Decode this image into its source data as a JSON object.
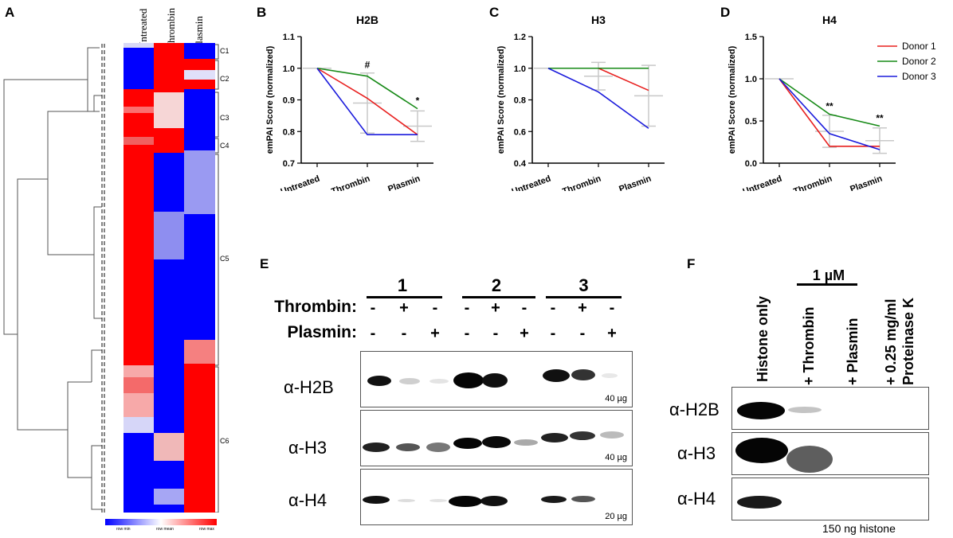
{
  "panel_letters": {
    "a": "A",
    "b": "B",
    "c": "C",
    "d": "D",
    "e": "E",
    "f": "F"
  },
  "heatmap": {
    "columns": [
      "Untreated",
      "Thrombin",
      "Plasmin"
    ],
    "clusters": [
      "C1",
      "C2",
      "C3",
      "C4",
      "C5",
      "C6"
    ],
    "legend": {
      "min": "row min",
      "mean": "row mean",
      "max": "row max"
    },
    "colors": {
      "low": "#0000ff",
      "mid": "#ffffff",
      "high": "#ff0000"
    }
  },
  "chart_data": [
    {
      "type": "line",
      "title": "H2B",
      "ylabel": "emPAI Score (normalized)",
      "xlabel": "",
      "categories": [
        "Untreated",
        "Thrombin",
        "Plasmin"
      ],
      "ylim": [
        0.7,
        1.1
      ],
      "yticks": [
        "0.7",
        "0.8",
        "0.9",
        "1.0",
        "1.1"
      ],
      "series": [
        {
          "name": "Donor 1",
          "color": "#e8201f",
          "values": [
            1.0,
            0.905,
            0.79
          ]
        },
        {
          "name": "Donor 2",
          "color": "#178a17",
          "values": [
            1.0,
            0.975,
            0.872
          ]
        },
        {
          "name": "Donor 3",
          "color": "#1b1bdc",
          "values": [
            1.0,
            0.79,
            0.79
          ]
        }
      ],
      "mean": [
        1.0,
        0.89,
        0.817
      ],
      "error": [
        0.0,
        0.095,
        0.048
      ],
      "annotations": [
        {
          "category": "Thrombin",
          "text": "#"
        },
        {
          "category": "Plasmin",
          "text": "*"
        }
      ]
    },
    {
      "type": "line",
      "title": "H3",
      "ylabel": "emPAI Score (normalized)",
      "xlabel": "",
      "categories": [
        "Untreated",
        "Thrombin",
        "Plasmin"
      ],
      "ylim": [
        0.4,
        1.2
      ],
      "yticks": [
        "0.4",
        "0.6",
        "0.8",
        "1.0",
        "1.2"
      ],
      "series": [
        {
          "name": "Donor 1",
          "color": "#e8201f",
          "values": [
            1.0,
            1.0,
            0.86
          ]
        },
        {
          "name": "Donor 2",
          "color": "#178a17",
          "values": [
            1.0,
            1.0,
            1.0
          ]
        },
        {
          "name": "Donor 3",
          "color": "#1b1bdc",
          "values": [
            1.0,
            0.85,
            0.62
          ]
        }
      ],
      "mean": [
        1.0,
        0.95,
        0.826
      ],
      "error": [
        0.0,
        0.087,
        0.192
      ],
      "annotations": []
    },
    {
      "type": "line",
      "title": "H4",
      "ylabel": "emPAI Score (normalized)",
      "xlabel": "",
      "categories": [
        "Untreated",
        "Thrombin",
        "Plasmin"
      ],
      "ylim": [
        0.0,
        1.5
      ],
      "yticks": [
        "0.0",
        "0.5",
        "1.0",
        "1.5"
      ],
      "series": [
        {
          "name": "Donor 1",
          "color": "#e8201f",
          "values": [
            1.0,
            0.2,
            0.2
          ]
        },
        {
          "name": "Donor 2",
          "color": "#178a17",
          "values": [
            1.0,
            0.58,
            0.44
          ]
        },
        {
          "name": "Donor 3",
          "color": "#1b1bdc",
          "values": [
            1.0,
            0.35,
            0.16
          ]
        }
      ],
      "mean": [
        1.0,
        0.377,
        0.267
      ],
      "error": [
        0.0,
        0.19,
        0.15
      ],
      "annotations": [
        {
          "category": "Thrombin",
          "text": "**"
        },
        {
          "category": "Plasmin",
          "text": "**"
        }
      ],
      "legend": [
        "Donor 1",
        "Donor 2",
        "Donor 3"
      ]
    }
  ],
  "blot_e": {
    "groups": [
      "1",
      "2",
      "3"
    ],
    "rows": [
      {
        "label": "Thrombin:",
        "signs": [
          "-",
          "+",
          "-",
          "-",
          "+",
          "-",
          "-",
          "+",
          "-"
        ]
      },
      {
        "label": "Plasmin:",
        "signs": [
          "-",
          "-",
          "+",
          "-",
          "-",
          "+",
          "-",
          "-",
          "+"
        ]
      }
    ],
    "antibodies": [
      "α-H2B",
      "α-H3",
      "α-H4"
    ],
    "amounts": [
      "40 µg",
      "40 µg",
      "20 µg"
    ]
  },
  "blot_f": {
    "column_labels": [
      "Histone only",
      "+ Thrombin",
      "+ Plasmin",
      "+ 0.25 mg/ml",
      "Proteinase K"
    ],
    "concentration": "1 µM",
    "antibodies": [
      "α-H2B",
      "α-H3",
      "α-H4"
    ],
    "footer": "150 ng histone"
  }
}
